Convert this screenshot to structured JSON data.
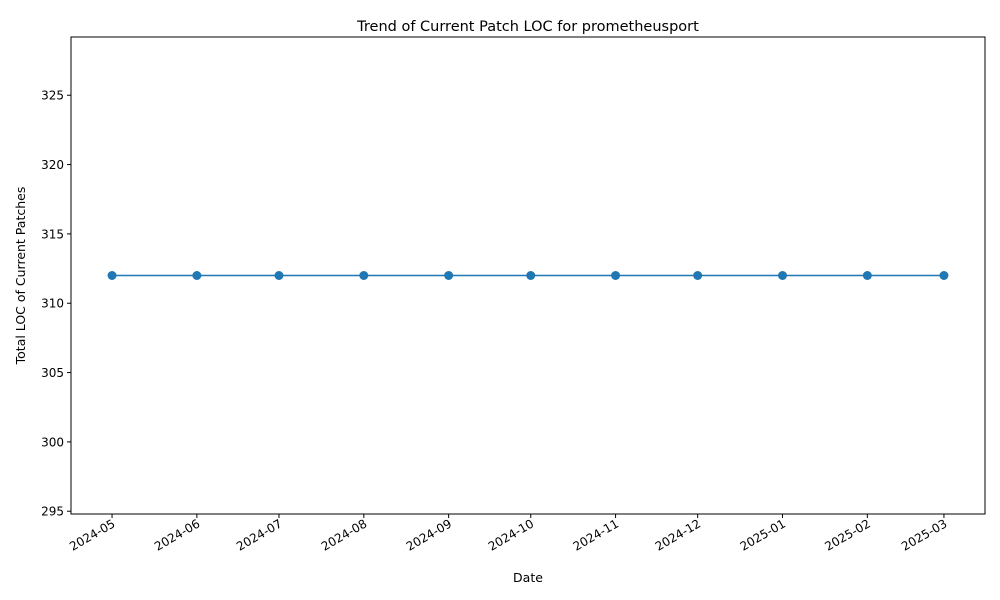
{
  "chart_data": {
    "type": "line",
    "title": "Trend of Current Patch LOC for prometheusport",
    "xlabel": "Date",
    "ylabel": "Total LOC of Current Patches",
    "x": [
      "2024-05-01",
      "2024-06-01",
      "2024-07-01",
      "2024-08-01",
      "2024-09-01",
      "2024-10-01",
      "2024-11-01",
      "2024-12-01",
      "2025-01-01",
      "2025-02-01",
      "2025-03-01"
    ],
    "x_tick_labels": [
      "2024-05",
      "2024-06",
      "2024-07",
      "2024-08",
      "2024-09",
      "2024-10",
      "2024-11",
      "2024-12",
      "2025-01",
      "2025-02",
      "2025-03"
    ],
    "series": [
      {
        "values": [
          312,
          312,
          312,
          312,
          312,
          312,
          312,
          312,
          312,
          312,
          312
        ]
      }
    ],
    "y_ticks": [
      295,
      300,
      305,
      310,
      315,
      320,
      325
    ],
    "ylim": [
      294.8,
      329.2
    ],
    "xlim": [
      "2024-04-16",
      "2025-03-16"
    ],
    "grid": false,
    "legend": "none",
    "color": "#1f77b4"
  }
}
